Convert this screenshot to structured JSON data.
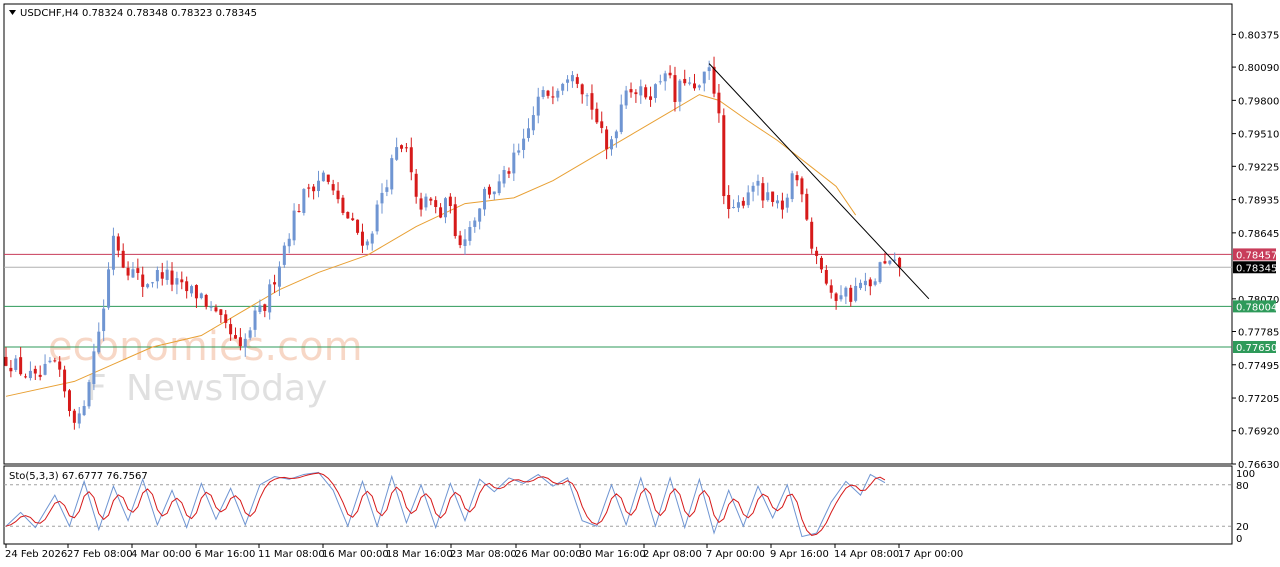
{
  "header": {
    "symbol": "USDCHF,H4",
    "ohlc": "0.78324 0.78348 0.78323 0.78345",
    "dropdown_icon": "triangle-down-icon"
  },
  "indicator": {
    "label": "Sto(5,3,3) 67.6777 76.7567",
    "levels": [
      "100",
      "80",
      "20",
      "0"
    ]
  },
  "watermark": {
    "line1": "economies.com",
    "line2_fx": "F",
    "line2_rest": "NewsToday"
  },
  "colors": {
    "bull": "#6f95d2",
    "bear": "#d61a1a",
    "ma": "#e8a034",
    "resistance": "#c83c5a",
    "support": "#2e9a5a",
    "current": "#000000",
    "stoch_main": "#6f95d2",
    "stoch_signal": "#d61a1a"
  },
  "chart_data": {
    "type": "candlestick",
    "y_ticks": [
      "0.80375",
      "0.80090",
      "0.79800",
      "0.79510",
      "0.79225",
      "0.78935",
      "0.78645",
      "0.78070",
      "0.77785",
      "0.77495",
      "0.77205",
      "0.76920",
      "0.76630"
    ],
    "x_ticks": [
      "24 Feb 2026",
      "27 Feb 08:00",
      "4 Mar 00:00",
      "6 Mar 16:00",
      "11 Mar 08:00",
      "16 Mar 00:00",
      "18 Mar 16:00",
      "23 Mar 08:00",
      "26 Mar 00:00",
      "30 Mar 16:00",
      "2 Apr 08:00",
      "7 Apr 00:00",
      "9 Apr 16:00",
      "14 Apr 08:00",
      "17 Apr 00:00"
    ],
    "ylim": [
      0.7663,
      0.8064
    ],
    "price_tags": [
      {
        "value": 0.78457,
        "label": "0.78457",
        "role": "resistance"
      },
      {
        "value": 0.78345,
        "label": "0.78345",
        "role": "current"
      },
      {
        "value": 0.78004,
        "label": "0.78004",
        "role": "support"
      },
      {
        "value": 0.7765,
        "label": "0.77650",
        "role": "support"
      }
    ],
    "trendline": [
      {
        "i": 144,
        "price": 0.8012
      },
      {
        "i": 189,
        "price": 0.7807
      }
    ],
    "keypoints": [
      [
        0,
        0.7755
      ],
      [
        6,
        0.7735
      ],
      [
        10,
        0.775
      ],
      [
        13,
        0.7712
      ],
      [
        15,
        0.77
      ],
      [
        17,
        0.774
      ],
      [
        20,
        0.78
      ],
      [
        22,
        0.7865
      ],
      [
        24,
        0.784
      ],
      [
        28,
        0.782
      ],
      [
        32,
        0.783
      ],
      [
        36,
        0.7815
      ],
      [
        40,
        0.781
      ],
      [
        43,
        0.779
      ],
      [
        46,
        0.7775
      ],
      [
        48,
        0.776
      ],
      [
        51,
        0.779
      ],
      [
        53,
        0.78
      ],
      [
        56,
        0.784
      ],
      [
        59,
        0.788
      ],
      [
        62,
        0.7905
      ],
      [
        65,
        0.7915
      ],
      [
        68,
        0.789
      ],
      [
        71,
        0.787
      ],
      [
        74,
        0.7855
      ],
      [
        77,
        0.79
      ],
      [
        80,
        0.7935
      ],
      [
        82,
        0.7935
      ],
      [
        84,
        0.789
      ],
      [
        87,
        0.789
      ],
      [
        89,
        0.788
      ],
      [
        91,
        0.7895
      ],
      [
        92,
        0.7855
      ],
      [
        95,
        0.787
      ],
      [
        98,
        0.79
      ],
      [
        101,
        0.7905
      ],
      [
        103,
        0.792
      ],
      [
        106,
        0.794
      ],
      [
        109,
        0.798
      ],
      [
        112,
        0.799
      ],
      [
        116,
        0.801
      ],
      [
        120,
        0.7975
      ],
      [
        123,
        0.7935
      ],
      [
        125,
        0.796
      ],
      [
        127,
        0.7995
      ],
      [
        130,
        0.7985
      ],
      [
        133,
        0.799
      ],
      [
        135,
        0.801
      ],
      [
        137,
        0.798
      ],
      [
        139,
        0.8
      ],
      [
        141,
        0.7985
      ],
      [
        144,
        0.8005
      ],
      [
        146,
        0.7975
      ],
      [
        147,
        0.789
      ],
      [
        149,
        0.788
      ],
      [
        151,
        0.7895
      ],
      [
        153,
        0.791
      ],
      [
        155,
        0.7895
      ],
      [
        157,
        0.789
      ],
      [
        159,
        0.788
      ],
      [
        161,
        0.7915
      ],
      [
        163,
        0.7905
      ],
      [
        165,
        0.7855
      ],
      [
        167,
        0.7835
      ],
      [
        169,
        0.7805
      ],
      [
        171,
        0.7815
      ],
      [
        173,
        0.781
      ],
      [
        175,
        0.782
      ],
      [
        177,
        0.7815
      ],
      [
        179,
        0.7835
      ],
      [
        181,
        0.7835
      ],
      [
        183,
        0.7834
      ]
    ],
    "ma_points": [
      [
        0,
        0.7722
      ],
      [
        14,
        0.7735
      ],
      [
        22,
        0.775
      ],
      [
        30,
        0.7765
      ],
      [
        40,
        0.7775
      ],
      [
        48,
        0.7795
      ],
      [
        56,
        0.7815
      ],
      [
        64,
        0.783
      ],
      [
        74,
        0.7845
      ],
      [
        84,
        0.787
      ],
      [
        94,
        0.789
      ],
      [
        104,
        0.7895
      ],
      [
        112,
        0.791
      ],
      [
        120,
        0.793
      ],
      [
        128,
        0.795
      ],
      [
        136,
        0.797
      ],
      [
        142,
        0.7985
      ],
      [
        146,
        0.798
      ],
      [
        152,
        0.7962
      ],
      [
        158,
        0.7945
      ],
      [
        164,
        0.7925
      ],
      [
        170,
        0.7905
      ],
      [
        174,
        0.788
      ]
    ],
    "stoch_points": [
      [
        0,
        20
      ],
      [
        3,
        40
      ],
      [
        6,
        18
      ],
      [
        10,
        65
      ],
      [
        13,
        20
      ],
      [
        16,
        85
      ],
      [
        19,
        15
      ],
      [
        22,
        78
      ],
      [
        25,
        28
      ],
      [
        28,
        88
      ],
      [
        31,
        22
      ],
      [
        34,
        72
      ],
      [
        37,
        18
      ],
      [
        40,
        82
      ],
      [
        43,
        30
      ],
      [
        46,
        75
      ],
      [
        49,
        22
      ],
      [
        52,
        80
      ],
      [
        55,
        92
      ],
      [
        58,
        88
      ],
      [
        61,
        95
      ],
      [
        64,
        98
      ],
      [
        67,
        72
      ],
      [
        70,
        20
      ],
      [
        73,
        85
      ],
      [
        76,
        20
      ],
      [
        79,
        92
      ],
      [
        82,
        25
      ],
      [
        85,
        80
      ],
      [
        88,
        18
      ],
      [
        91,
        82
      ],
      [
        94,
        28
      ],
      [
        97,
        88
      ],
      [
        100,
        70
      ],
      [
        103,
        90
      ],
      [
        106,
        82
      ],
      [
        109,
        95
      ],
      [
        112,
        78
      ],
      [
        115,
        90
      ],
      [
        118,
        28
      ],
      [
        121,
        20
      ],
      [
        124,
        80
      ],
      [
        127,
        22
      ],
      [
        130,
        90
      ],
      [
        133,
        20
      ],
      [
        136,
        90
      ],
      [
        139,
        18
      ],
      [
        142,
        88
      ],
      [
        145,
        10
      ],
      [
        148,
        72
      ],
      [
        151,
        20
      ],
      [
        154,
        78
      ],
      [
        157,
        32
      ],
      [
        160,
        80
      ],
      [
        163,
        5
      ],
      [
        166,
        10
      ],
      [
        169,
        55
      ],
      [
        172,
        85
      ],
      [
        175,
        65
      ],
      [
        177,
        95
      ],
      [
        180,
        83
      ]
    ]
  }
}
